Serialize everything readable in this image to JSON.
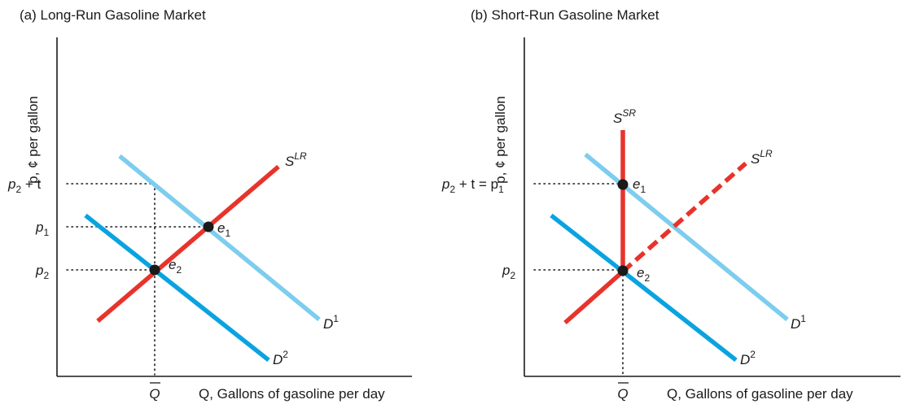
{
  "panels": [
    {
      "id": "a",
      "title": "(a) Long-Run Gasoline Market",
      "y_axis_label": "p, ¢ per gallon",
      "x_axis_label": "Q, Gallons of gasoline per day",
      "q_bar_label": "Q",
      "price_labels": {
        "upper": "p",
        "upper_sub": "2",
        "upper_suffix": " + t",
        "middle": "p",
        "middle_sub": "1",
        "lower": "p",
        "lower_sub": "2"
      },
      "curves": {
        "supply_lr": {
          "label": "S",
          "sup": "LR",
          "color": "#e8332b"
        },
        "demand_1": {
          "label": "D",
          "sup": "1",
          "color": "#7dcdee"
        },
        "demand_2": {
          "label": "D",
          "sup": "2",
          "color": "#0aa3e0"
        }
      },
      "equilibria": [
        {
          "label": "e",
          "sub": "1"
        },
        {
          "label": "e",
          "sub": "2"
        }
      ]
    },
    {
      "id": "b",
      "title": "(b) Short-Run Gasoline Market",
      "y_axis_label": "p, ¢ per gallon",
      "x_axis_label": "Q, Gallons of gasoline per day",
      "q_bar_label": "Q",
      "price_labels": {
        "upper": "p",
        "upper_sub": "2",
        "upper_suffix": " + t = p",
        "upper_suffix_sub": "1",
        "lower": "p",
        "lower_sub": "2"
      },
      "curves": {
        "supply_sr": {
          "label": "S",
          "sup": "SR",
          "color": "#e8332b"
        },
        "supply_lr": {
          "label": "S",
          "sup": "LR",
          "color": "#e8332b"
        },
        "demand_1": {
          "label": "D",
          "sup": "1",
          "color": "#7dcdee"
        },
        "demand_2": {
          "label": "D",
          "sup": "2",
          "color": "#0aa3e0"
        }
      },
      "equilibria": [
        {
          "label": "e",
          "sub": "1"
        },
        {
          "label": "e",
          "sub": "2"
        }
      ]
    }
  ]
}
